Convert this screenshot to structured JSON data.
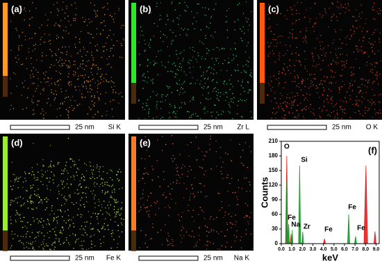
{
  "panels": [
    {
      "label": "(a)",
      "scale": "25 nm",
      "element": "Si K"
    },
    {
      "label": "(b)",
      "scale": "25 nm",
      "element": "Zr L"
    },
    {
      "label": "(c)",
      "scale": "25 nm",
      "element": "O K"
    },
    {
      "label": "(d)",
      "scale": "25 nm",
      "element": "Fe K"
    },
    {
      "label": "(e)",
      "scale": "25 nm",
      "element": "Na K"
    }
  ],
  "chart_data": {
    "type": "area",
    "panel_label": "(f)",
    "xlabel": "keV",
    "ylabel": "Counts",
    "xlim": [
      0,
      9.3
    ],
    "ylim": [
      0,
      210
    ],
    "xticks": [
      {
        "value": 0,
        "label": "0.0"
      },
      {
        "value": 1,
        "label": "1.0"
      },
      {
        "value": 2,
        "label": "2.0"
      },
      {
        "value": 3,
        "label": "3.0"
      },
      {
        "value": 4,
        "label": "4.0"
      },
      {
        "value": 5,
        "label": "5.0"
      },
      {
        "value": 6,
        "label": "6.0"
      },
      {
        "value": 7,
        "label": "7.0"
      },
      {
        "value": 8,
        "label": "8.0"
      },
      {
        "value": 9,
        "label": "9.0"
      }
    ],
    "yticks": [
      0,
      30,
      60,
      90,
      120,
      150,
      180,
      210
    ],
    "series": [
      {
        "color": "#e02020",
        "x": [
          0,
          0.4,
          0.52,
          0.62,
          0.85,
          0.93,
          1.0,
          4.0,
          4.1,
          4.2,
          7.85,
          8.04,
          8.2,
          8.8,
          8.9,
          9.0,
          9.3
        ],
        "values": [
          0,
          0,
          180,
          4,
          0,
          20,
          0,
          0,
          10,
          0,
          0,
          160,
          0,
          0,
          25,
          0,
          0
        ]
      },
      {
        "color": "#1a9a2a",
        "x": [
          0,
          0.42,
          0.52,
          0.62,
          0.7,
          0.78,
          1.0,
          1.04,
          1.1,
          1.64,
          1.74,
          1.84,
          1.95,
          2.04,
          2.12,
          6.3,
          6.4,
          6.5,
          6.95,
          7.06,
          7.15,
          9.3
        ],
        "values": [
          0,
          0,
          130,
          5,
          40,
          3,
          0,
          28,
          0,
          0,
          160,
          2,
          0,
          24,
          0,
          0,
          60,
          0,
          0,
          15,
          0,
          0
        ]
      }
    ],
    "annotations": [
      "O",
      "Si",
      "Fe",
      "Na",
      "Zr",
      "Fe",
      "Fe",
      "Fe"
    ]
  }
}
